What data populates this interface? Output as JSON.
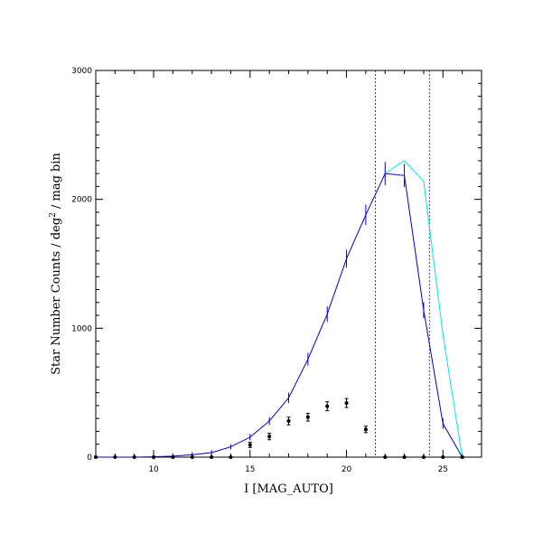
{
  "chart_data": {
    "type": "line",
    "title": "",
    "xlabel": "I [MAG_AUTO]",
    "ylabel_parts": [
      "Star Number Counts / deg",
      "2",
      " / mag bin"
    ],
    "xlim": [
      7,
      27
    ],
    "ylim": [
      0,
      3000
    ],
    "x_ticks": [
      10,
      15,
      20,
      25
    ],
    "y_ticks": [
      0,
      1000,
      2000,
      3000
    ],
    "grid": false,
    "legend": "none",
    "series": [
      {
        "color": "#00e5e5",
        "x": [
          22,
          23,
          24,
          25,
          26
        ],
        "y": [
          2200,
          2300,
          2140,
          950,
          0
        ]
      },
      {
        "color": "#0000cc",
        "x": [
          7,
          8,
          9,
          10,
          11,
          12,
          13,
          14,
          15,
          16,
          17,
          18,
          19,
          20,
          21,
          22,
          23,
          24,
          25,
          26
        ],
        "y": [
          0,
          0,
          0,
          3,
          8,
          18,
          35,
          80,
          155,
          280,
          460,
          760,
          1110,
          1540,
          1880,
          2200,
          2185,
          1140,
          260,
          0
        ],
        "yerr": [
          0,
          0,
          0,
          20,
          20,
          20,
          20,
          20,
          25,
          30,
          40,
          50,
          60,
          70,
          80,
          90,
          90,
          60,
          40,
          0
        ]
      },
      {
        "color": "#000000",
        "style": "points",
        "x": [
          7,
          8,
          9,
          10,
          11,
          12,
          13,
          14,
          15,
          16,
          17,
          18,
          19,
          20,
          21,
          22,
          23,
          24,
          25,
          26
        ],
        "y": [
          0,
          0,
          0,
          0,
          0,
          0,
          0,
          0,
          95,
          160,
          280,
          310,
          395,
          420,
          215,
          0,
          0,
          0,
          0,
          0
        ],
        "yerr": [
          0,
          0,
          0,
          0,
          0,
          0,
          0,
          0,
          20,
          25,
          30,
          30,
          35,
          35,
          25,
          0,
          0,
          0,
          0,
          0
        ]
      }
    ],
    "vlines": [
      {
        "x": 21.5,
        "color": "#cc0000"
      },
      {
        "x": 24.3,
        "color": "#cc00cc"
      }
    ]
  }
}
